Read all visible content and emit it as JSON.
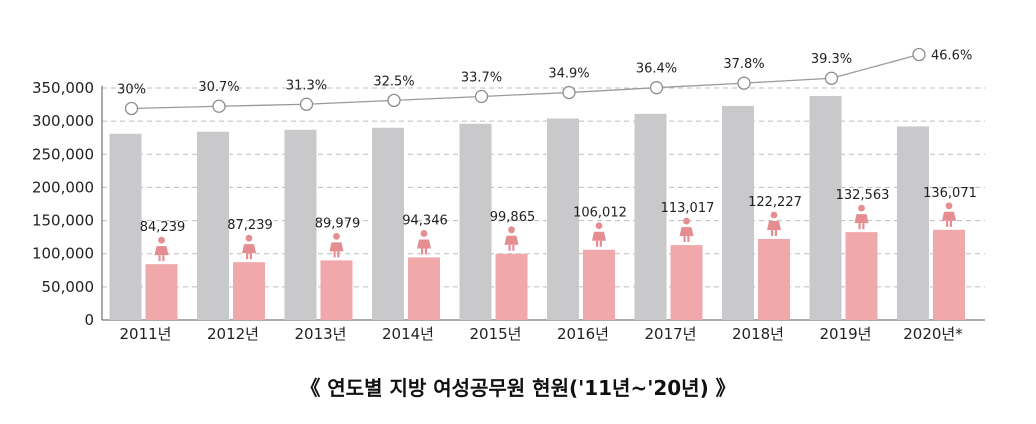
{
  "chart_data": {
    "type": "bar",
    "title": "《 연도별 지방 여성공무원 현원('11년~'20년) 》",
    "categories": [
      "2011년",
      "2012년",
      "2013년",
      "2014년",
      "2015년",
      "2016년",
      "2017년",
      "2018년",
      "2019년",
      "2020년*"
    ],
    "series": [
      {
        "values": [
          281000,
          284000,
          287000,
          290000,
          296000,
          304000,
          311000,
          323000,
          338000,
          292000
        ],
        "color": "#c9c8ca"
      },
      {
        "values": [
          84239,
          87239,
          89979,
          94346,
          99865,
          106012,
          113017,
          122227,
          132563,
          136071
        ],
        "color": "#f0a8aa",
        "labels": [
          "84,239",
          "87,239",
          "89,979",
          "94,346",
          "99,865",
          "106,012",
          "113,017",
          "122,227",
          "132,563",
          "136,071"
        ]
      },
      {
        "type": "line",
        "values": [
          30,
          30.7,
          31.3,
          32.5,
          33.7,
          34.9,
          36.4,
          37.8,
          39.3,
          46.6
        ],
        "color": "#9a9a9a",
        "labels": [
          "30%",
          "30.7%",
          "31.3%",
          "32.5%",
          "33.7%",
          "34.9%",
          "36.4%",
          "37.8%",
          "39.3%",
          "46.6%"
        ]
      }
    ],
    "yticks": [
      "0",
      "50,000",
      "100,000",
      "150,000",
      "200,000",
      "250,000",
      "300,000",
      "350,000"
    ],
    "ylim": [
      0,
      350000
    ],
    "grid": "dashed horizontal",
    "icon": "female-person-icon"
  }
}
